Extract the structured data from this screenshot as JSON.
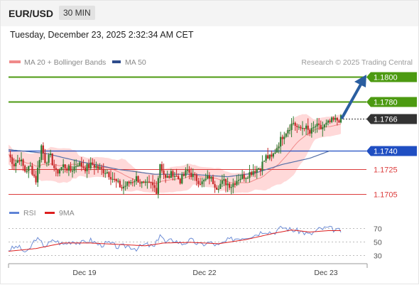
{
  "header": {
    "symbol": "EUR/USD",
    "timeframe": "30 MIN"
  },
  "timestamp": "Tuesday, December 23, 2025 2:32:34 AM CET",
  "legend": {
    "bollinger": "MA 20 + Bollinger Bands",
    "ma50": "MA 50",
    "credit": "Research © 2025 Trading Central"
  },
  "rsi_legend": {
    "rsi": "RSI",
    "ma9": "9MA"
  },
  "colors": {
    "resistance": "#4c9a11",
    "support": "#1f4ec2",
    "support_minor": "#dc3c3c",
    "current": "#333333",
    "arrow": "#2a5ea0",
    "bollinger_fill": "#ffd9d9",
    "ma20": "#f08a8a",
    "ma50": "#5470a8",
    "rsi": "#6f8ed6",
    "rsi_ma": "#dd1f1f"
  },
  "chart_data": {
    "type": "candlestick",
    "x_labels": [
      "Dec 19",
      "Dec 22",
      "Dec 23"
    ],
    "levels": [
      {
        "value": 1.18,
        "label": "1.1800",
        "kind": "resistance"
      },
      {
        "value": 1.178,
        "label": "1.1780",
        "kind": "resistance"
      },
      {
        "value": 1.1766,
        "label": "1.1766",
        "kind": "current"
      },
      {
        "value": 1.174,
        "label": "1.1740",
        "kind": "pivot"
      },
      {
        "value": 1.1725,
        "label": "1.1725",
        "kind": "support"
      },
      {
        "value": 1.1705,
        "label": "1.1705",
        "kind": "support"
      }
    ],
    "ylim": [
      1.1699,
      1.1806
    ],
    "close_path": [
      [
        0,
        1.1737
      ],
      [
        3,
        1.1729
      ],
      [
        6,
        1.1734
      ],
      [
        9,
        1.1724
      ],
      [
        12,
        1.1727
      ],
      [
        15,
        1.1716
      ],
      [
        18,
        1.1744
      ],
      [
        20,
        1.1732
      ],
      [
        23,
        1.1735
      ],
      [
        26,
        1.1722
      ],
      [
        30,
        1.1728
      ],
      [
        34,
        1.1724
      ],
      [
        38,
        1.173
      ],
      [
        42,
        1.1726
      ],
      [
        46,
        1.1729
      ],
      [
        50,
        1.1725
      ],
      [
        54,
        1.1723
      ],
      [
        58,
        1.1716
      ],
      [
        62,
        1.171
      ],
      [
        66,
        1.1714
      ],
      [
        70,
        1.1718
      ],
      [
        74,
        1.1712
      ],
      [
        78,
        1.1713
      ],
      [
        81,
        1.1708
      ],
      [
        83,
        1.173
      ],
      [
        86,
        1.1717
      ],
      [
        90,
        1.1722
      ],
      [
        94,
        1.1716
      ],
      [
        98,
        1.1724
      ],
      [
        102,
        1.1718
      ],
      [
        106,
        1.1714
      ],
      [
        110,
        1.1719
      ],
      [
        114,
        1.1711
      ],
      [
        118,
        1.1715
      ],
      [
        122,
        1.1712
      ],
      [
        126,
        1.1718
      ],
      [
        130,
        1.172
      ],
      [
        134,
        1.1724
      ],
      [
        138,
        1.1727
      ],
      [
        141,
        1.1735
      ],
      [
        144,
        1.1734
      ],
      [
        147,
        1.1743
      ],
      [
        150,
        1.1752
      ],
      [
        153,
        1.1758
      ],
      [
        156,
        1.1763
      ],
      [
        159,
        1.1757
      ],
      [
        162,
        1.176
      ],
      [
        165,
        1.1754
      ],
      [
        168,
        1.176
      ],
      [
        171,
        1.1758
      ],
      [
        174,
        1.1761
      ],
      [
        177,
        1.1764
      ],
      [
        180,
        1.1765
      ],
      [
        182,
        1.1766
      ]
    ],
    "ma50": [
      [
        0,
        1.1741
      ],
      [
        20,
        1.1738
      ],
      [
        40,
        1.1731
      ],
      [
        60,
        1.1725
      ],
      [
        80,
        1.1721
      ],
      [
        100,
        1.1721
      ],
      [
        120,
        1.1719
      ],
      [
        135,
        1.1722
      ],
      [
        150,
        1.1729
      ],
      [
        165,
        1.1734
      ],
      [
        176,
        1.174
      ]
    ],
    "rsi": {
      "levels": [
        70,
        50,
        30
      ],
      "ylim": [
        20,
        80
      ],
      "values": [
        [
          0,
          38
        ],
        [
          5,
          43
        ],
        [
          10,
          33
        ],
        [
          15,
          55
        ],
        [
          20,
          44
        ],
        [
          25,
          52
        ],
        [
          30,
          46
        ],
        [
          35,
          51
        ],
        [
          40,
          48
        ],
        [
          45,
          52
        ],
        [
          50,
          45
        ],
        [
          55,
          48
        ],
        [
          60,
          42
        ],
        [
          65,
          44
        ],
        [
          70,
          40
        ],
        [
          75,
          46
        ],
        [
          80,
          42
        ],
        [
          83,
          62
        ],
        [
          86,
          48
        ],
        [
          90,
          53
        ],
        [
          95,
          47
        ],
        [
          100,
          52
        ],
        [
          105,
          45
        ],
        [
          110,
          49
        ],
        [
          115,
          44
        ],
        [
          120,
          52
        ],
        [
          125,
          55
        ],
        [
          130,
          57
        ],
        [
          135,
          60
        ],
        [
          140,
          66
        ],
        [
          145,
          63
        ],
        [
          150,
          71
        ],
        [
          155,
          67
        ],
        [
          160,
          65
        ],
        [
          165,
          60
        ],
        [
          170,
          68
        ],
        [
          175,
          70
        ],
        [
          180,
          66
        ]
      ],
      "ma": [
        [
          0,
          36
        ],
        [
          15,
          40
        ],
        [
          30,
          48
        ],
        [
          45,
          48
        ],
        [
          60,
          46
        ],
        [
          75,
          44
        ],
        [
          85,
          48
        ],
        [
          100,
          49
        ],
        [
          115,
          47
        ],
        [
          130,
          53
        ],
        [
          145,
          62
        ],
        [
          155,
          67
        ],
        [
          165,
          64
        ],
        [
          175,
          66
        ],
        [
          182,
          66
        ]
      ]
    }
  }
}
